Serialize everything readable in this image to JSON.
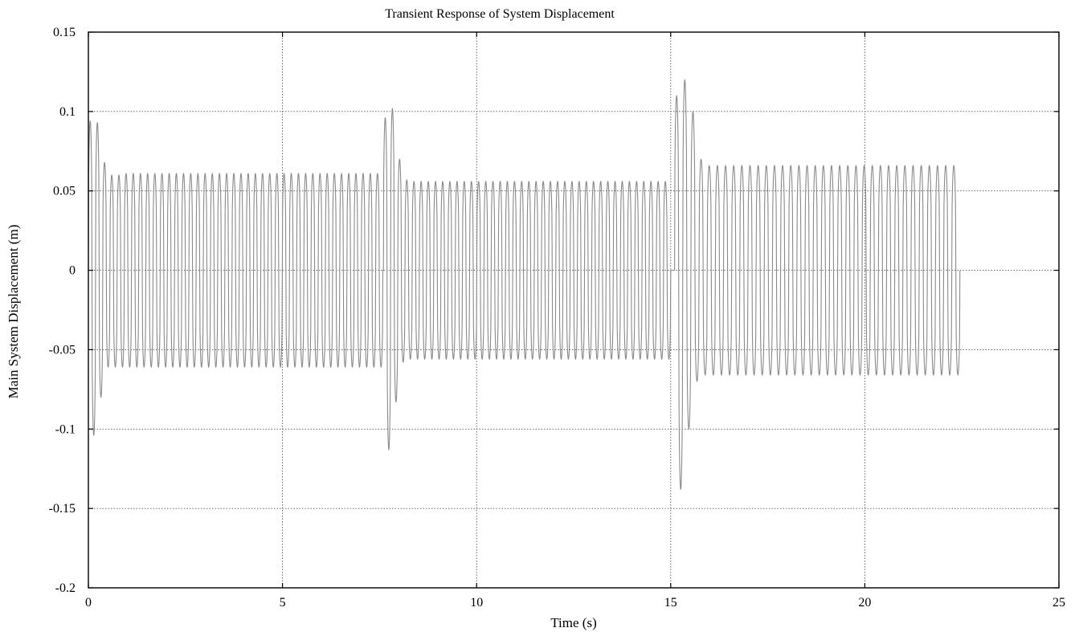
{
  "chart_data": {
    "type": "line",
    "title": "Transient Response of System Displacement",
    "xlabel": "Time (s)",
    "ylabel": "Main System Displacement (m)",
    "xlim": [
      0,
      25
    ],
    "ylim": [
      -0.2,
      0.15
    ],
    "xticks": [
      0,
      5,
      10,
      15,
      20,
      25
    ],
    "xtick_labels": [
      "0",
      "5",
      "10",
      "15",
      "20",
      "25"
    ],
    "yticks": [
      -0.2,
      -0.15,
      -0.1,
      -0.05,
      0,
      0.05,
      0.1,
      0.15
    ],
    "ytick_labels": [
      "-0.2",
      "-0.15",
      "-0.1",
      "-0.05",
      "0",
      "0.05",
      "0.1",
      "0.15"
    ],
    "grid": true,
    "line_color": "#8a8a8a",
    "series": [
      {
        "segments": [
          {
            "t_start": 0.0,
            "t_end": 7.6,
            "period": 0.185,
            "peaks": [
              0.094,
              0.093,
              0.068,
              0.06,
              0.06,
              0.061,
              0.061,
              0.061
            ],
            "troughs": [
              -0.104,
              -0.08,
              -0.061,
              -0.061,
              -0.061,
              -0.061,
              -0.061,
              -0.061
            ]
          },
          {
            "t_start": 7.6,
            "t_end": 15.1,
            "period": 0.185,
            "peaks": [
              0.096,
              0.102,
              0.07,
              0.057,
              0.056,
              0.056,
              0.056,
              0.056
            ],
            "troughs": [
              -0.113,
              -0.083,
              -0.058,
              -0.056,
              -0.056,
              -0.056,
              -0.056,
              -0.056
            ]
          },
          {
            "t_start": 15.1,
            "t_end": 22.55,
            "period": 0.21,
            "peaks": [
              0.11,
              0.12,
              0.1,
              0.07,
              0.066,
              0.066,
              0.066,
              0.066
            ],
            "troughs": [
              -0.138,
              -0.1,
              -0.07,
              -0.066,
              -0.066,
              -0.066,
              -0.066,
              -0.066
            ]
          }
        ]
      }
    ]
  }
}
